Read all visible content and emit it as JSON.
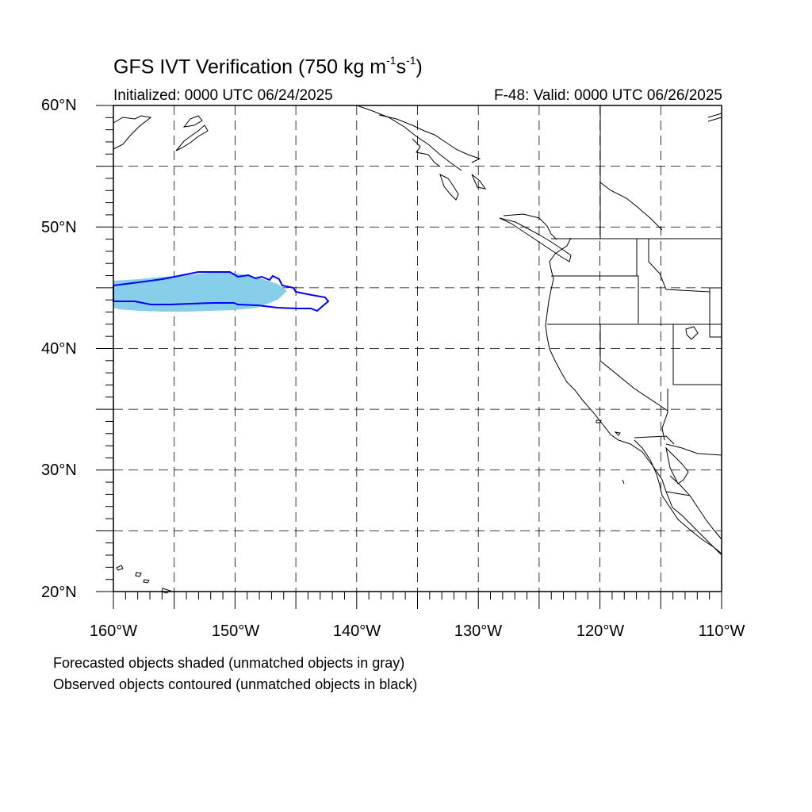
{
  "title": {
    "main": "GFS IVT Verification (750 kg m",
    "exp1": "-1",
    "mid": "s",
    "exp2": "-1",
    "end": ")"
  },
  "subtitle": {
    "initialized": "Initialized: 0000 UTC 06/24/2025",
    "valid": "F-48: Valid: 0000 UTC 06/26/2025"
  },
  "map": {
    "lon_range": [
      -160,
      -110
    ],
    "lat_range": [
      20,
      60
    ],
    "grid": "dashed every 5 degrees",
    "lat_labels": [
      "60°N",
      "50°N",
      "40°N",
      "30°N",
      "20°N"
    ],
    "lon_labels": [
      "160°W",
      "150°W",
      "140°W",
      "130°W",
      "120°W",
      "110°W"
    ],
    "forecast_object_color": "#87ceeb",
    "observed_object_color": "#0000ff",
    "coastline_color": "#000000"
  },
  "notes": {
    "line1": "Forecasted objects shaded (unmatched objects in gray)",
    "line2": "Observed objects contoured (unmatched objects in black)"
  }
}
